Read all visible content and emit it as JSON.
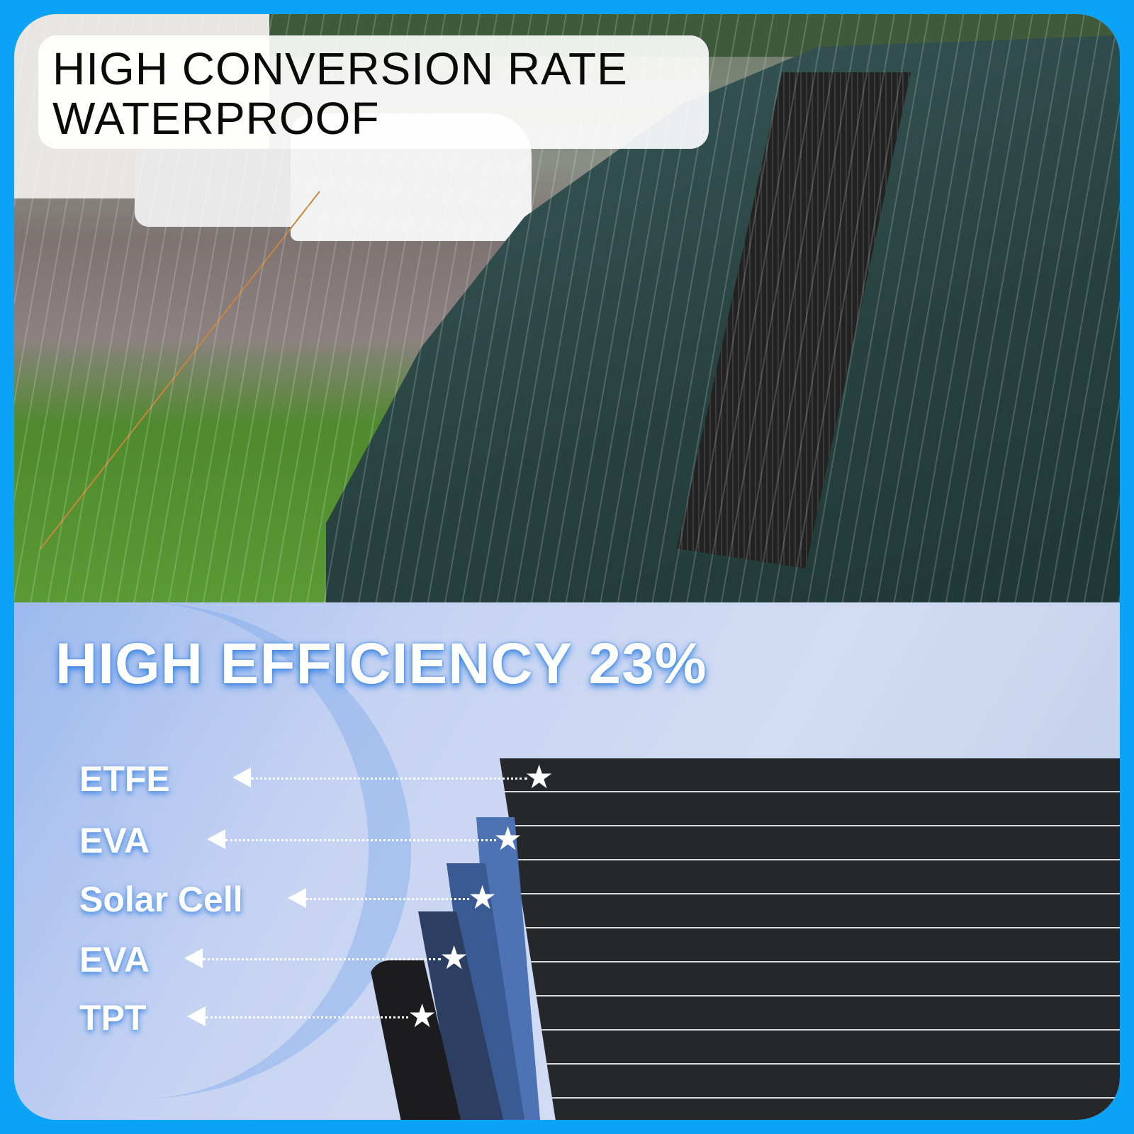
{
  "top": {
    "title_line1": "HIGH CONVERSION RATE",
    "title_line2": "WATERPROOF"
  },
  "bottom": {
    "headline": "HIGH EFFICIENCY 23%",
    "layers": [
      "ETFE",
      "EVA",
      "Solar Cell",
      "EVA",
      "TPT"
    ]
  },
  "colors": {
    "border": "#0aa3f5",
    "headline_glow": "#2f7fe0"
  }
}
